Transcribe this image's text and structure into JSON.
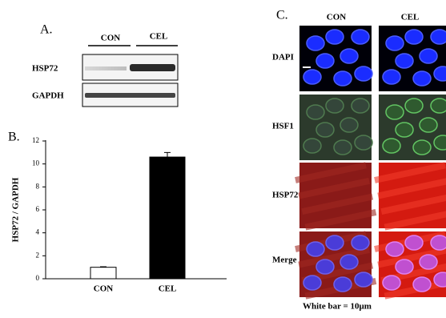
{
  "panel_a": {
    "label": "A.",
    "groups": [
      "CON",
      "CEL"
    ],
    "rows": [
      "HSP72",
      "GAPDH"
    ]
  },
  "panel_c": {
    "label": "C.",
    "columns": [
      "CON",
      "CEL"
    ],
    "rows": [
      "DAPI",
      "HSF1",
      "HSP72",
      "Merge"
    ],
    "note": "White bar = 10μm"
  },
  "panel_b_label": "B.",
  "chart_data": {
    "type": "bar",
    "y_label": "HSP72 / GAPDH",
    "categories": [
      "CON",
      "CEL"
    ],
    "values": [
      1.0,
      10.6
    ],
    "errors": [
      0.05,
      0.4
    ],
    "colors": [
      "#ffffff",
      "#000000"
    ],
    "ylim": [
      0,
      12
    ],
    "yticks": [
      0,
      2,
      4,
      6,
      8,
      10,
      12
    ]
  }
}
